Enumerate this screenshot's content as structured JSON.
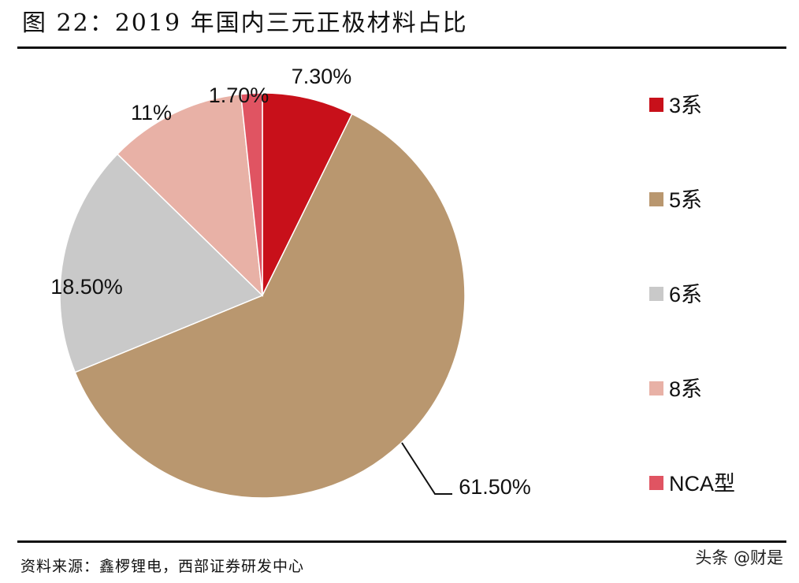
{
  "title": "图 22：2019 年国内三元正极材料占比",
  "source": "资料来源：鑫椤锂电，西部证券研发中心",
  "watermark": "头条 @财是",
  "chart_data": {
    "type": "pie",
    "title": "图 22：2019 年国内三元正极材料占比",
    "categories": [
      "3系",
      "5系",
      "6系",
      "8系",
      "NCA型"
    ],
    "values": [
      7.3,
      61.5,
      18.5,
      11,
      1.7
    ],
    "data_labels": [
      "7.30%",
      "61.50%",
      "18.50%",
      "11%",
      "1.70%"
    ],
    "colors": [
      "#c8101a",
      "#b9976f",
      "#c9c9c9",
      "#e8b1a6",
      "#e05462"
    ],
    "start": "12 o'clock, clockwise",
    "legend_placement": "right"
  }
}
